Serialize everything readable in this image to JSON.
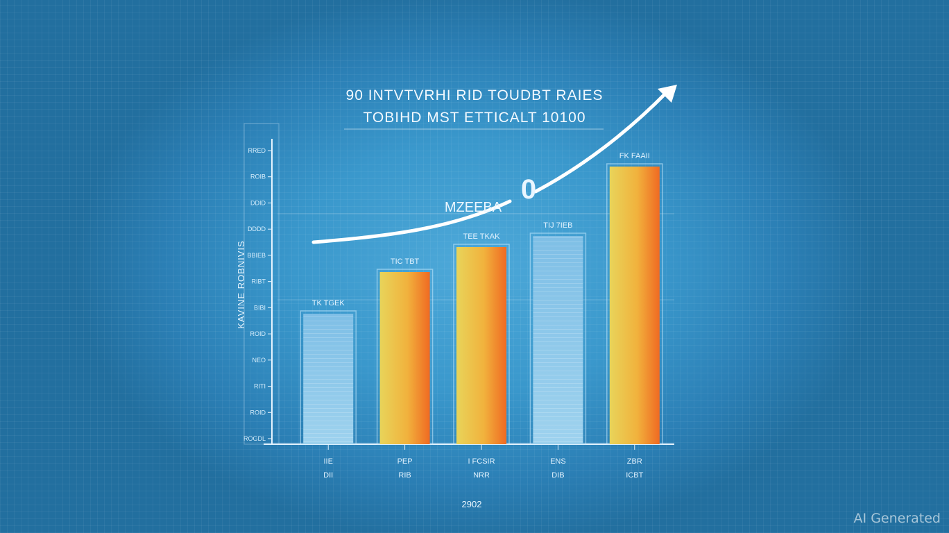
{
  "chart_data": {
    "type": "bar",
    "title": "90 INTVTVRHI RID TOUDBT RAIES",
    "subtitle": "TOBIHD MST ETTICALT 10100",
    "ylabel": "KAVINE ROBNIVIS",
    "xlabel": "2902",
    "annotation": "MZEEBA",
    "annotation_symbol": "0",
    "categories": [
      "IIE\nDII",
      "PEP\nRIB",
      "I FCSIR\nNRR",
      "ENS\nDIB",
      "ZBR\nICBT"
    ],
    "series": [
      {
        "values": [
          47,
          62,
          71,
          75,
          100
        ]
      }
    ],
    "value_labels": [
      "TK TGEK",
      "TIC TBT",
      "TEE TKAK",
      "TIJ 7IEB",
      "FK FAAII"
    ],
    "y_tick_labels": [
      "ROGDL",
      "ROID",
      "RITI",
      "NEO",
      "ROID",
      "BIBI",
      "RIBT",
      "BBIEB",
      "DDDD",
      "DDID",
      "ROIB",
      "RRED"
    ],
    "ylim": [
      0,
      110
    ],
    "styles": [
      "blue",
      "warm",
      "warm",
      "blue",
      "warm"
    ],
    "colors": {
      "blue_bar_top": "#7fbfe6",
      "blue_bar_bottom": "#9ed2ee",
      "warm_left": "#e8d45a",
      "warm_mid": "#f1b23d",
      "warm_right": "#f06a22",
      "axis": "#e6f4ff",
      "trend": "#ffffff"
    },
    "grid": true,
    "legend": "none"
  },
  "watermark": "AI Generated"
}
